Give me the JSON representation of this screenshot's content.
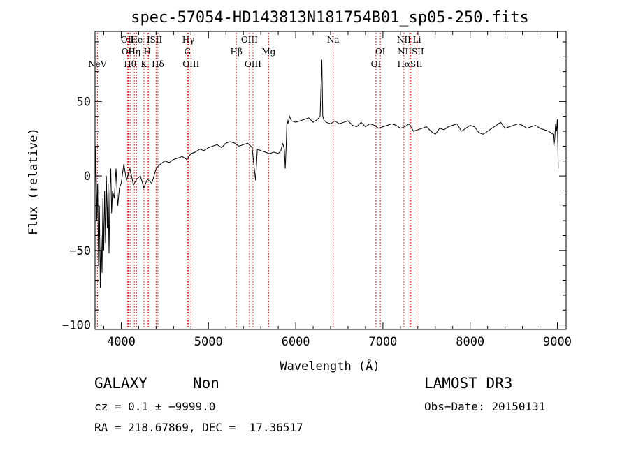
{
  "chart_data": {
    "type": "line",
    "title": "spec-57054-HD143813N181754B01_sp05-250.fits",
    "xlabel": "Wavelength (Å)",
    "ylabel": "Flux (relative)",
    "xlim": [
      3700,
      9100
    ],
    "ylim": [
      -103,
      97
    ],
    "xticks": [
      4000,
      5000,
      6000,
      7000,
      8000,
      9000
    ],
    "xtick_labels": [
      "4000",
      "5000",
      "6000",
      "7000",
      "8000",
      "9000"
    ],
    "yticks": [
      -100,
      -50,
      0,
      50
    ],
    "ytick_labels": [
      "−100",
      "−50",
      "0",
      "50"
    ],
    "grid": false,
    "line_color": "#000000",
    "marker_color": "#cc0000",
    "series": [
      {
        "x": [
          3700,
          3710,
          3720,
          3730,
          3740,
          3750,
          3760,
          3770,
          3780,
          3790,
          3800,
          3810,
          3820,
          3830,
          3840,
          3850,
          3860,
          3870,
          3880,
          3890,
          3900,
          3920,
          3940,
          3960,
          3980,
          4000,
          4030,
          4060,
          4100,
          4140,
          4180,
          4220,
          4260,
          4300,
          4350,
          4400,
          4450,
          4500,
          4550,
          4600,
          4650,
          4700,
          4750,
          4800,
          4850,
          4900,
          4950,
          5000,
          5050,
          5100,
          5150,
          5200,
          5250,
          5300,
          5350,
          5400,
          5450,
          5500,
          5540,
          5560,
          5600,
          5650,
          5700,
          5750,
          5800,
          5830,
          5850,
          5870,
          5880,
          5890,
          5900,
          5910,
          5930,
          5950,
          6000,
          6050,
          6100,
          6150,
          6200,
          6250,
          6280,
          6300,
          6310,
          6320,
          6330,
          6350,
          6400,
          6450,
          6500,
          6550,
          6600,
          6650,
          6700,
          6750,
          6800,
          6850,
          6900,
          6950,
          7000,
          7050,
          7100,
          7150,
          7200,
          7250,
          7300,
          7350,
          7400,
          7450,
          7500,
          7550,
          7600,
          7650,
          7700,
          7750,
          7800,
          7850,
          7900,
          7950,
          8000,
          8050,
          8100,
          8150,
          8200,
          8250,
          8300,
          8350,
          8400,
          8450,
          8500,
          8550,
          8600,
          8650,
          8700,
          8750,
          8800,
          8850,
          8900,
          8950,
          8960,
          8970,
          8980,
          8990,
          9000,
          9010
        ],
        "y": [
          -10,
          20,
          -30,
          -5,
          -60,
          -20,
          -75,
          -40,
          -65,
          -15,
          -50,
          -10,
          -45,
          0,
          -35,
          -5,
          -52,
          -12,
          5,
          -25,
          -10,
          -15,
          5,
          -20,
          -8,
          -5,
          8,
          -3,
          5,
          -6,
          -2,
          0,
          -8,
          -2,
          -5,
          5,
          8,
          10,
          9,
          11,
          12,
          13,
          11,
          15,
          16,
          18,
          17,
          19,
          20,
          21,
          19,
          22,
          23,
          22,
          20,
          21,
          22,
          19,
          -3,
          18,
          17,
          16,
          15,
          16,
          15,
          17,
          22,
          18,
          5,
          18,
          38,
          35,
          40,
          37,
          36,
          37,
          38,
          39,
          36,
          38,
          40,
          78,
          40,
          38,
          37,
          36,
          35,
          37,
          35,
          36,
          37,
          34,
          33,
          36,
          33,
          35,
          34,
          32,
          33,
          34,
          35,
          34,
          32,
          33,
          35,
          30,
          31,
          32,
          33,
          30,
          28,
          32,
          31,
          33,
          34,
          35,
          30,
          32,
          34,
          33,
          29,
          28,
          30,
          32,
          34,
          36,
          32,
          33,
          34,
          35,
          34,
          32,
          33,
          34,
          32,
          31,
          30,
          28,
          20,
          25,
          35,
          30,
          38,
          5
        ]
      }
    ],
    "lines": [
      {
        "name": "NeV",
        "x": 3727,
        "row": 2
      },
      {
        "name": "OII",
        "x": 4073,
        "row": 0
      },
      {
        "name": "OII",
        "x": 4080,
        "row": 1
      },
      {
        "name": "Hθ",
        "x": 4102,
        "row": 2
      },
      {
        "name": "He",
        "x": 4175,
        "row": 0
      },
      {
        "name": "Hη",
        "x": 4150,
        "row": 1
      },
      {
        "name": "K",
        "x": 4260,
        "row": 2
      },
      {
        "name": "H",
        "x": 4300,
        "row": 1
      },
      {
        "name": "I",
        "x": 4312,
        "row": 0
      },
      {
        "name": "SII",
        "x": 4400,
        "row": 0
      },
      {
        "name": "Hδ",
        "x": 4420,
        "row": 2
      },
      {
        "name": "Hγ",
        "x": 4770,
        "row": 0
      },
      {
        "name": "G",
        "x": 4760,
        "row": 1
      },
      {
        "name": "OIII",
        "x": 4800,
        "row": 2
      },
      {
        "name": "OIII",
        "x": 5470,
        "row": 0
      },
      {
        "name": "Hβ",
        "x": 5320,
        "row": 1
      },
      {
        "name": "OIII",
        "x": 5510,
        "row": 2
      },
      {
        "name": "Mg",
        "x": 5690,
        "row": 1
      },
      {
        "name": "Na",
        "x": 6430,
        "row": 0
      },
      {
        "name": "OI",
        "x": 6970,
        "row": 1
      },
      {
        "name": "OI",
        "x": 6920,
        "row": 2
      },
      {
        "name": "NII",
        "x": 7240,
        "row": 0
      },
      {
        "name": "Li",
        "x": 7390,
        "row": 0
      },
      {
        "name": "NIISII",
        "x": 7320,
        "row": 1
      },
      {
        "name": "HαSII",
        "x": 7310,
        "row": 2
      }
    ]
  },
  "info": {
    "class": "GALAXY",
    "subclass": "Non",
    "survey": "LAMOST DR3",
    "cz": "cz = 0.1 ± −9999.0",
    "obs_date": "Obs−Date: 20150131",
    "radec": "RA = 218.67869, DEC =  17.36517"
  }
}
